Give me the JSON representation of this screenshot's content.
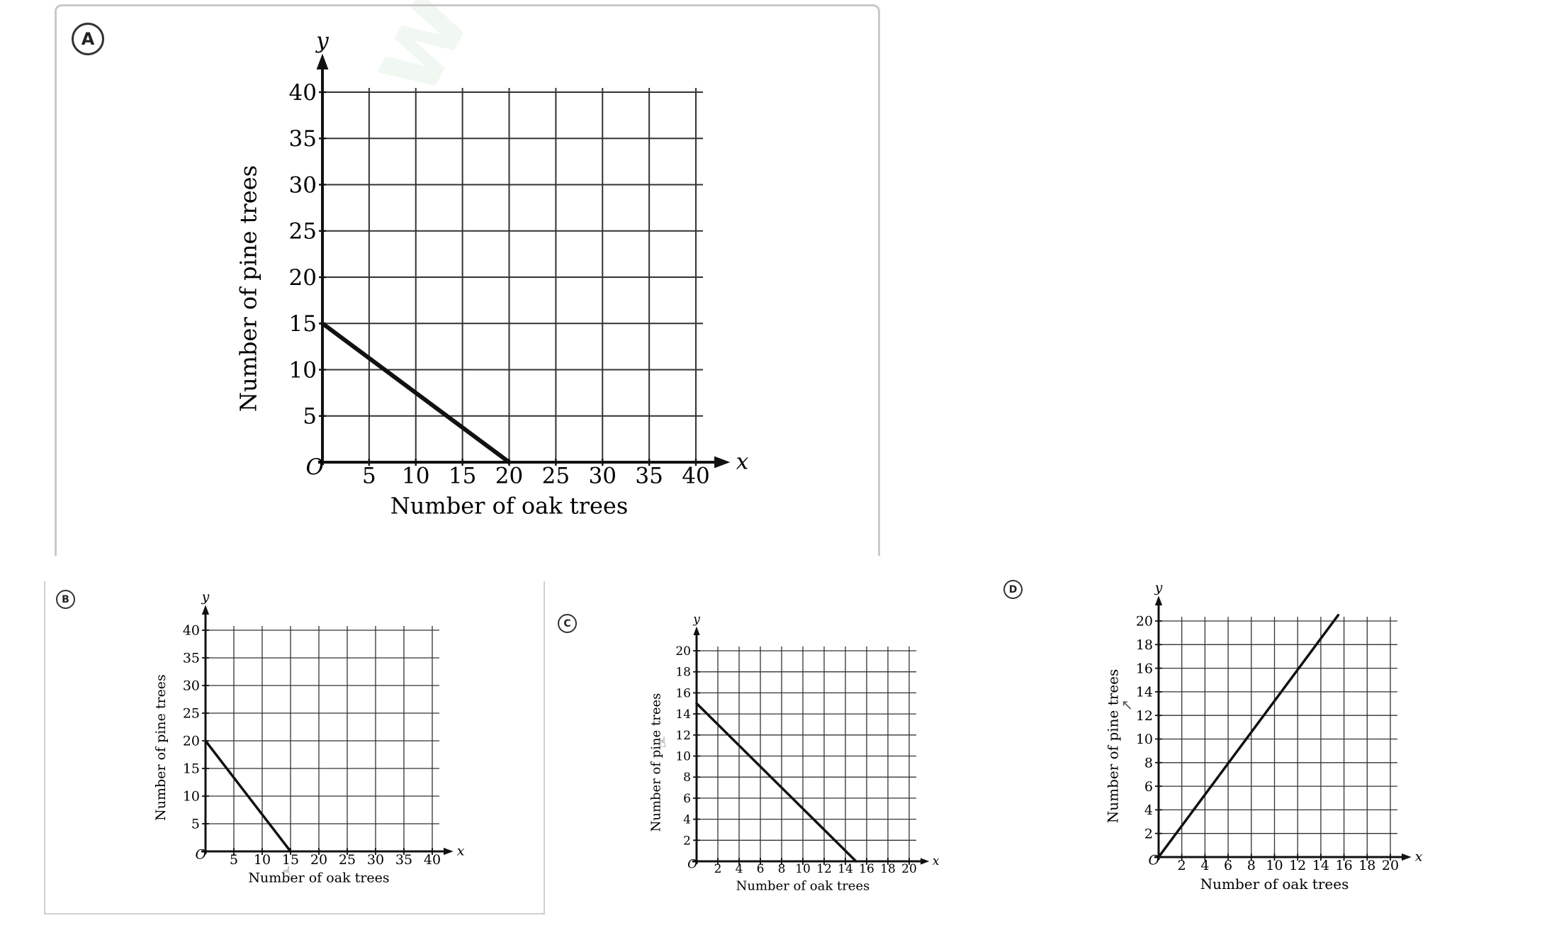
{
  "options": {
    "a": {
      "letter": "A"
    },
    "b": {
      "letter": "B"
    },
    "c": {
      "letter": "C"
    },
    "d": {
      "letter": "D"
    }
  },
  "watermark_text": "www.",
  "chart_data": [
    {
      "option": "A",
      "type": "line",
      "xlabel": "Number of oak trees",
      "ylabel": "Number of pine trees",
      "x_axis_name": "x",
      "y_axis_name": "y",
      "origin_label": "O",
      "xlim": [
        0,
        40
      ],
      "ylim": [
        0,
        40
      ],
      "xticks": [
        5,
        10,
        15,
        20,
        25,
        30,
        35,
        40
      ],
      "yticks": [
        5,
        10,
        15,
        20,
        25,
        30,
        35,
        40
      ],
      "grid": true,
      "series": [
        {
          "x": [
            0,
            20
          ],
          "y": [
            15,
            0
          ]
        }
      ]
    },
    {
      "option": "B",
      "type": "line",
      "xlabel": "Number of oak trees",
      "ylabel": "Number of pine trees",
      "x_axis_name": "x",
      "y_axis_name": "y",
      "origin_label": "O",
      "xlim": [
        0,
        40
      ],
      "ylim": [
        0,
        40
      ],
      "xticks": [
        5,
        10,
        15,
        20,
        25,
        30,
        35,
        40
      ],
      "yticks": [
        5,
        10,
        15,
        20,
        25,
        30,
        35,
        40
      ],
      "grid": true,
      "series": [
        {
          "x": [
            0,
            15
          ],
          "y": [
            20,
            0
          ]
        }
      ]
    },
    {
      "option": "C",
      "type": "line",
      "xlabel": "Number of oak trees",
      "ylabel": "Number of pine trees",
      "x_axis_name": "x",
      "y_axis_name": "y",
      "origin_label": "O",
      "xlim": [
        0,
        20
      ],
      "ylim": [
        0,
        20
      ],
      "xticks": [
        2,
        4,
        6,
        8,
        10,
        12,
        14,
        16,
        18,
        20
      ],
      "yticks": [
        2,
        4,
        6,
        8,
        10,
        12,
        14,
        16,
        18,
        20
      ],
      "grid": true,
      "series": [
        {
          "x": [
            0,
            15
          ],
          "y": [
            15,
            0
          ]
        }
      ]
    },
    {
      "option": "D",
      "type": "line",
      "xlabel": "Number of oak trees",
      "ylabel": "Number of pine trees",
      "x_axis_name": "x",
      "y_axis_name": "y",
      "origin_label": "O",
      "xlim": [
        0,
        20
      ],
      "ylim": [
        0,
        20
      ],
      "xticks": [
        2,
        4,
        6,
        8,
        10,
        12,
        14,
        16,
        18,
        20
      ],
      "yticks": [
        2,
        4,
        6,
        8,
        10,
        12,
        14,
        16,
        18,
        20
      ],
      "grid": true,
      "series": [
        {
          "x": [
            0,
            15.5
          ],
          "y": [
            0,
            20.5
          ]
        }
      ]
    }
  ]
}
